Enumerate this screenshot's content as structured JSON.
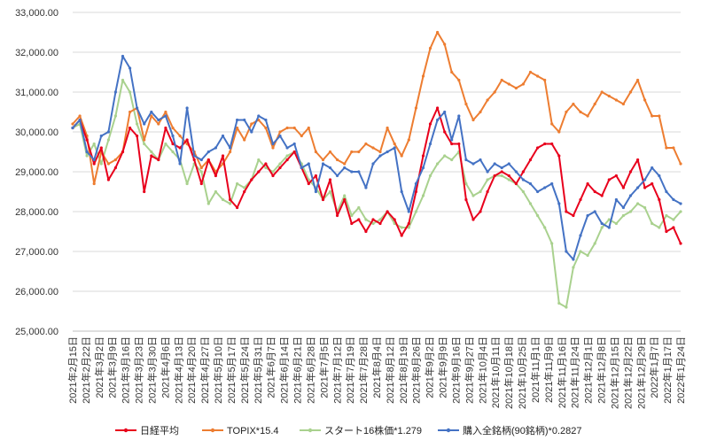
{
  "chart_data": {
    "type": "line",
    "title": "",
    "xlabel": "",
    "ylabel": "",
    "ylim": [
      25000,
      33000
    ],
    "y_ticks": [
      "25,000.00",
      "26,000.00",
      "27,000.00",
      "28,000.00",
      "29,000.00",
      "30,000.00",
      "31,000.00",
      "32,000.00",
      "33,000.00"
    ],
    "grid": "horizontal",
    "legend_position": "bottom",
    "x_tick_labels": [
      "2021年2月15日",
      "2021年2月22日",
      "2021年3月2日",
      "2021年3月9日",
      "2021年3月16日",
      "2021年3月23日",
      "2021年3月30日",
      "2021年4月6日",
      "2021年4月13日",
      "2021年4月20日",
      "2021年4月27日",
      "2021年5月10日",
      "2021年5月17日",
      "2021年5月24日",
      "2021年5月31日",
      "2021年6月7日",
      "2021年6月14日",
      "2021年6月21日",
      "2021年6月28日",
      "2021年7月5日",
      "2021年7月12日",
      "2021年7月19日",
      "2021年7月28日",
      "2021年8月4日",
      "2021年8月12日",
      "2021年8月19日",
      "2021年8月26日",
      "2021年9月2日",
      "2021年9月9日",
      "2021年9月16日",
      "2021年9月27日",
      "2021年10月4日",
      "2021年10月11日",
      "2021年10月18日",
      "2021年10月25日",
      "2021年11月1日",
      "2021年11月9日",
      "2021年11月16日",
      "2021年11月24日",
      "2021年12月1日",
      "2021年12月8日",
      "2021年12月15日",
      "2021年12月22日",
      "2021年12月29日",
      "2022年1月7日",
      "2022年1月17日",
      "2022年1月24日"
    ],
    "series": [
      {
        "name": "日経平均",
        "color": "#e8001c",
        "values": [
          30100,
          30300,
          29800,
          29200,
          29600,
          28800,
          29100,
          29500,
          30100,
          29900,
          28500,
          29400,
          29300,
          30100,
          29700,
          29600,
          29800,
          29300,
          28700,
          29300,
          28900,
          29400,
          28300,
          28100,
          28500,
          28800,
          29000,
          29200,
          28900,
          29100,
          29300,
          29500,
          29100,
          28700,
          28900,
          28300,
          28800,
          27900,
          28300,
          27700,
          27800,
          27500,
          27800,
          27700,
          28000,
          27800,
          27400,
          27700,
          28500,
          29400,
          30200,
          30600,
          30000,
          29700,
          29700,
          28300,
          27800,
          28000,
          28500,
          28900,
          29000,
          28900,
          28700,
          29000,
          29300,
          29600,
          29700,
          29700,
          29400,
          28000,
          27900,
          28300,
          28700,
          28500,
          28400,
          28800,
          28900,
          28600,
          29000,
          29300,
          28600,
          28700,
          28300,
          27500,
          27600,
          27200
        ]
      },
      {
        "name": "TOPIX*15.4",
        "color": "#ed7d31",
        "values": [
          30200,
          30400,
          29900,
          28700,
          29500,
          29200,
          29300,
          29500,
          30500,
          30600,
          29800,
          30400,
          30200,
          30500,
          30100,
          29900,
          29700,
          29500,
          29100,
          29300,
          29000,
          29200,
          29500,
          30100,
          29800,
          30200,
          30300,
          30100,
          29600,
          30000,
          30100,
          30100,
          29900,
          30100,
          29500,
          29300,
          29500,
          29300,
          29200,
          29500,
          29500,
          29700,
          29600,
          29500,
          30100,
          29700,
          29400,
          29800,
          30600,
          31400,
          32100,
          32500,
          32200,
          31500,
          31300,
          30700,
          30300,
          30500,
          30800,
          31000,
          31300,
          31200,
          31100,
          31200,
          31500,
          31400,
          31300,
          30200,
          30000,
          30500,
          30700,
          30500,
          30400,
          30700,
          31000,
          30900,
          30800,
          30700,
          31000,
          31300,
          30800,
          30400,
          30400,
          29600,
          29600,
          29200
        ]
      },
      {
        "name": "スタート16株価*1.279",
        "color": "#a9d18e",
        "values": [
          30100,
          30200,
          29400,
          29700,
          29200,
          29800,
          30400,
          31300,
          31000,
          30200,
          29700,
          29500,
          29300,
          29700,
          29500,
          29300,
          28700,
          29200,
          29000,
          28200,
          28500,
          28300,
          28200,
          28700,
          28600,
          28800,
          29300,
          29100,
          29000,
          29200,
          29400,
          29500,
          29200,
          28800,
          28600,
          28300,
          28500,
          28000,
          28400,
          27900,
          28100,
          27800,
          27700,
          27800,
          28000,
          27700,
          27600,
          27600,
          28000,
          28400,
          28900,
          29200,
          29400,
          29300,
          29500,
          28700,
          28400,
          28500,
          28800,
          28900,
          28900,
          28800,
          28700,
          28500,
          28200,
          27900,
          27600,
          27200,
          25700,
          25600,
          26600,
          27000,
          26900,
          27200,
          27600,
          27800,
          27700,
          27900,
          28000,
          28200,
          28100,
          27700,
          27600,
          27900,
          27800,
          28000
        ]
      },
      {
        "name": "購入全銘柄(90銘柄)*0.2827",
        "color": "#4472c4",
        "values": [
          30100,
          30300,
          29500,
          29300,
          29900,
          30000,
          31000,
          31900,
          31600,
          30600,
          30200,
          30500,
          30300,
          30400,
          29900,
          29200,
          30600,
          29400,
          29300,
          29500,
          29600,
          29900,
          29600,
          30300,
          30300,
          30000,
          30400,
          30300,
          29700,
          29900,
          29600,
          29700,
          29100,
          29200,
          28500,
          29200,
          29100,
          28900,
          29100,
          29000,
          29000,
          28600,
          29200,
          29400,
          29500,
          29600,
          28500,
          28000,
          28700,
          29100,
          29700,
          30300,
          30500,
          29800,
          30400,
          29300,
          29200,
          29300,
          29000,
          29200,
          29100,
          29200,
          29000,
          28800,
          28700,
          28500,
          28600,
          28700,
          28200,
          27000,
          26800,
          27400,
          27900,
          28000,
          27700,
          27600,
          28300,
          28100,
          28400,
          28600,
          28800,
          29100,
          28900,
          28500,
          28300,
          28200
        ]
      }
    ]
  }
}
